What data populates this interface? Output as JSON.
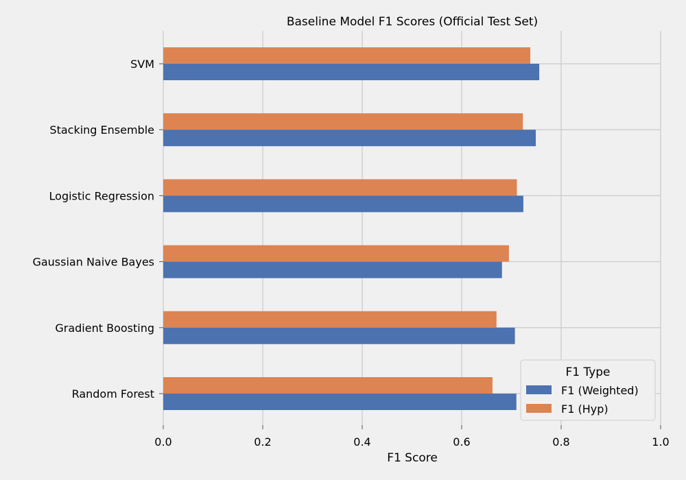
{
  "chart_data": {
    "type": "bar",
    "orientation": "horizontal",
    "title": "Baseline Model F1 Scores (Official Test Set)",
    "xlabel": "F1 Score",
    "ylabel": "",
    "xlim": [
      0,
      1.0
    ],
    "xticks": [
      "0.0",
      "0.2",
      "0.4",
      "0.6",
      "0.8",
      "1.0"
    ],
    "grid": true,
    "categories": [
      "SVM",
      "Stacking Ensemble",
      "Logistic Regression",
      "Gaussian Naive Bayes",
      "Gradient Boosting",
      "Random Forest"
    ],
    "series": [
      {
        "name": "F1 (Weighted)",
        "color": "#4c72b0",
        "values": [
          0.756,
          0.749,
          0.724,
          0.681,
          0.707,
          0.71
        ]
      },
      {
        "name": "F1 (Hyp)",
        "color": "#dd8452",
        "values": [
          0.738,
          0.723,
          0.711,
          0.695,
          0.67,
          0.662
        ]
      }
    ],
    "legend": {
      "title": "F1 Type",
      "position": "lower-right"
    }
  }
}
